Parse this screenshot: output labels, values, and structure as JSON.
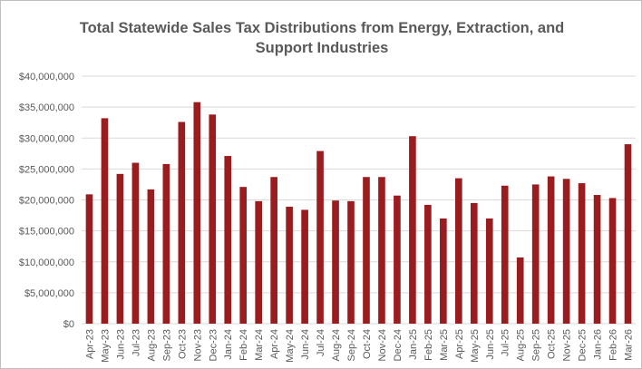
{
  "chart_data": {
    "type": "bar",
    "title_lines": [
      "Total Statewide Sales Tax Distributions from Energy, Extraction, and",
      "Support Industries"
    ],
    "categories": [
      "Apr-23",
      "May-23",
      "Jun-23",
      "Jul-23",
      "Aug-23",
      "Sep-23",
      "Oct-23",
      "Nov-23",
      "Dec-23",
      "Jan-24",
      "Feb-24",
      "Mar-24",
      "Apr-24",
      "May-24",
      "Jun-24",
      "Jul-24",
      "Aug-24",
      "Sep-24",
      "Oct-24",
      "Nov-24",
      "Dec-24",
      "Jan-25",
      "Feb-25",
      "Mar-25",
      "Apr-25",
      "May-25",
      "Jun-25",
      "Jul-25",
      "Aug-25",
      "Sep-25",
      "Oct-25",
      "Nov-25",
      "Dec-25",
      "Jan-26",
      "Feb-26",
      "Mar-26"
    ],
    "values": [
      20900000,
      33200000,
      24200000,
      26000000,
      21700000,
      25800000,
      32600000,
      35800000,
      33800000,
      27100000,
      22100000,
      19800000,
      23700000,
      18900000,
      18400000,
      27900000,
      19900000,
      19800000,
      23700000,
      23700000,
      20700000,
      30300000,
      19200000,
      17000000,
      23500000,
      19500000,
      17000000,
      22300000,
      10700000,
      22500000,
      23800000,
      23400000,
      22700000,
      20800000,
      20300000,
      29000000
    ],
    "ylim": [
      0,
      40000000
    ],
    "yticks": [
      0,
      5000000,
      10000000,
      15000000,
      20000000,
      25000000,
      30000000,
      35000000,
      40000000
    ],
    "ytick_labels": [
      "$0",
      "$5,000,000",
      "$10,000,000",
      "$15,000,000",
      "$20,000,000",
      "$25,000,000",
      "$30,000,000",
      "$35,000,000",
      "$40,000,000"
    ],
    "xlabel": "",
    "ylabel": "",
    "grid": true,
    "bar_color": "#9b1c1f",
    "grid_color": "#d9d9d9"
  }
}
